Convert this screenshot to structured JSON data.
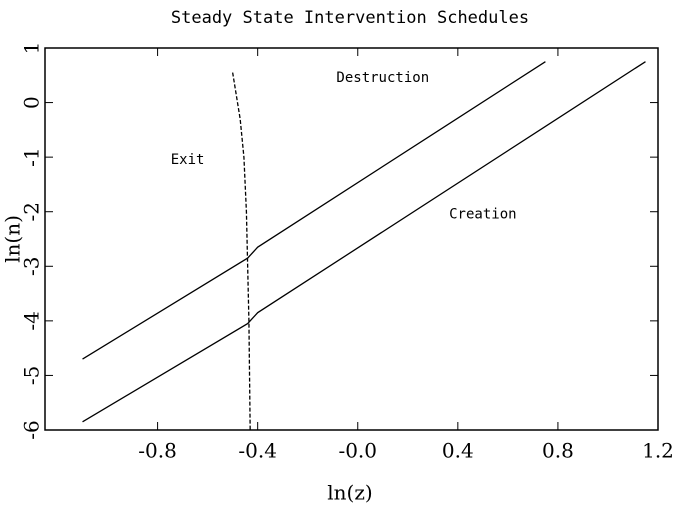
{
  "chart_data": {
    "type": "line",
    "title": "Steady State Intervention Schedules",
    "xlabel": "ln(z)",
    "ylabel": "ln(n)",
    "xlim": [
      -1.25,
      1.2
    ],
    "xticks": [
      -0.8,
      -0.4,
      {
        "value": 0,
        "label": "-0.0"
      },
      0.4,
      0.8,
      1.2
    ],
    "ylim": [
      -6,
      1
    ],
    "yticks": [
      -6,
      -5,
      -4,
      -3,
      -2,
      -1,
      0,
      1
    ],
    "annotations": [
      "Destruction",
      "Exit",
      "Creation"
    ],
    "series": [
      {
        "name": "Destruction",
        "color": "#000000",
        "dash": false,
        "x": [
          -1.1,
          -0.44,
          -0.4,
          0.75
        ],
        "values": [
          -4.7,
          -2.85,
          -2.65,
          0.75
        ]
      },
      {
        "name": "Creation",
        "color": "#000000",
        "dash": false,
        "x": [
          -1.1,
          -0.44,
          -0.4,
          1.15
        ],
        "values": [
          -5.85,
          -4.05,
          -3.85,
          0.75
        ]
      },
      {
        "name": "Exit",
        "color": "#000000",
        "dash": true,
        "x": [
          -0.5,
          -0.47,
          -0.455,
          -0.445,
          -0.44,
          -0.435,
          -0.43
        ],
        "values": [
          0.55,
          -0.3,
          -1.0,
          -2.0,
          -3.0,
          -4.0,
          -6.0
        ]
      }
    ]
  }
}
